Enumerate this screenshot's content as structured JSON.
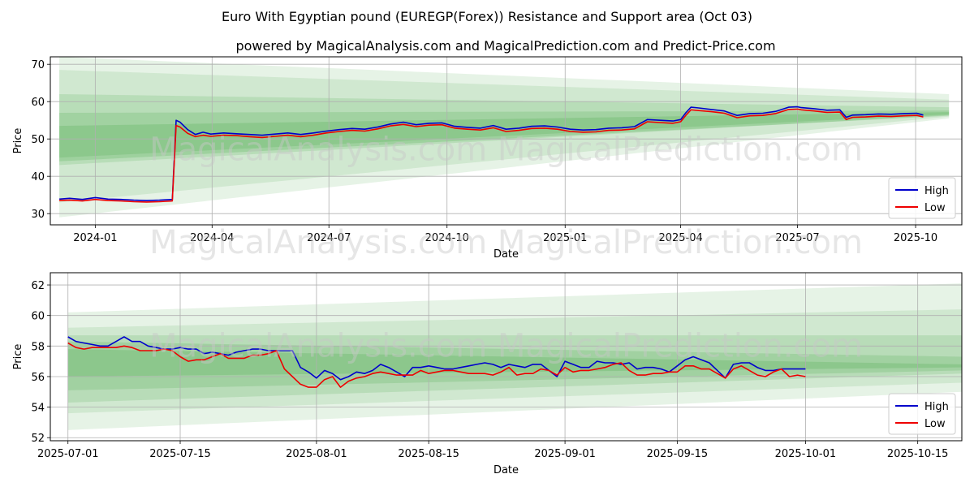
{
  "title": "Euro With Egyptian pound (EUREGP(Forex)) Resistance and Support area (Oct 03)",
  "subtitle": "powered by MagicalAnalysis.com and MagicalPrediction.com and Predict-Price.com",
  "watermark": "MagicalAnalysis.com   MagicalPrediction.com",
  "colors": {
    "high": "#0000cc",
    "low": "#ee0000",
    "band": "#2e9a2e"
  },
  "chart_data": [
    {
      "type": "line",
      "xlabel": "Date",
      "ylabel": "Price",
      "xlim": [
        -35,
        675
      ],
      "ylim": [
        27,
        72
      ],
      "xticks": [
        {
          "v": 0,
          "label": "2024-01"
        },
        {
          "v": 91,
          "label": "2024-04"
        },
        {
          "v": 182,
          "label": "2024-07"
        },
        {
          "v": 274,
          "label": "2024-10"
        },
        {
          "v": 366,
          "label": "2025-01"
        },
        {
          "v": 456,
          "label": "2025-04"
        },
        {
          "v": 547,
          "label": "2025-07"
        },
        {
          "v": 639,
          "label": "2025-10"
        }
      ],
      "yticks": [
        30,
        40,
        50,
        60,
        70
      ],
      "legend": {
        "position": "lower-right",
        "entries": [
          "High",
          "Low"
        ]
      },
      "series": [
        {
          "name": "High",
          "x": [
            -28,
            -20,
            -10,
            0,
            10,
            20,
            30,
            40,
            50,
            60,
            63,
            66,
            72,
            78,
            84,
            90,
            100,
            110,
            120,
            130,
            140,
            150,
            160,
            170,
            180,
            190,
            200,
            210,
            220,
            230,
            240,
            250,
            260,
            270,
            280,
            290,
            300,
            310,
            320,
            330,
            340,
            350,
            360,
            370,
            380,
            390,
            400,
            410,
            420,
            430,
            440,
            450,
            456,
            460,
            464,
            470,
            480,
            490,
            500,
            510,
            520,
            530,
            540,
            547,
            550,
            560,
            570,
            580,
            585,
            590,
            600,
            610,
            620,
            630,
            640,
            645
          ],
          "values": [
            33.9,
            34.1,
            33.8,
            34.3,
            33.9,
            33.8,
            33.6,
            33.5,
            33.6,
            33.8,
            55.0,
            54.5,
            52.5,
            51.2,
            51.8,
            51.3,
            51.6,
            51.4,
            51.2,
            51.0,
            51.3,
            51.6,
            51.2,
            51.6,
            52.1,
            52.5,
            52.8,
            52.6,
            53.2,
            54.0,
            54.5,
            53.8,
            54.2,
            54.3,
            53.4,
            53.1,
            52.9,
            53.6,
            52.6,
            52.9,
            53.4,
            53.5,
            53.2,
            52.6,
            52.4,
            52.5,
            52.9,
            53.0,
            53.3,
            55.2,
            55.0,
            54.8,
            55.2,
            57.0,
            58.5,
            58.3,
            57.9,
            57.5,
            56.3,
            56.8,
            56.9,
            57.4,
            58.5,
            58.6,
            58.4,
            58.1,
            57.7,
            57.8,
            55.8,
            56.4,
            56.5,
            56.7,
            56.6,
            56.8,
            56.9,
            56.4
          ]
        },
        {
          "name": "Low",
          "x": [
            -28,
            -20,
            -10,
            0,
            10,
            20,
            30,
            40,
            50,
            60,
            63,
            66,
            72,
            78,
            84,
            90,
            100,
            110,
            120,
            130,
            140,
            150,
            160,
            170,
            180,
            190,
            200,
            210,
            220,
            230,
            240,
            250,
            260,
            270,
            280,
            290,
            300,
            310,
            320,
            330,
            340,
            350,
            360,
            370,
            380,
            390,
            400,
            410,
            420,
            430,
            440,
            450,
            456,
            460,
            464,
            470,
            480,
            490,
            500,
            510,
            520,
            530,
            540,
            547,
            550,
            560,
            570,
            580,
            585,
            590,
            600,
            610,
            620,
            630,
            640,
            645
          ],
          "values": [
            33.5,
            33.6,
            33.4,
            33.8,
            33.5,
            33.4,
            33.2,
            33.1,
            33.2,
            33.4,
            53.6,
            53.2,
            51.5,
            50.6,
            51.0,
            50.7,
            51.0,
            50.9,
            50.6,
            50.4,
            50.7,
            51.0,
            50.6,
            51.0,
            51.6,
            52.0,
            52.3,
            52.1,
            52.7,
            53.5,
            53.9,
            53.3,
            53.7,
            53.8,
            52.9,
            52.6,
            52.4,
            53.0,
            52.0,
            52.3,
            52.8,
            52.9,
            52.6,
            52.0,
            51.8,
            51.9,
            52.3,
            52.4,
            52.7,
            54.6,
            54.4,
            54.2,
            54.6,
            56.3,
            57.8,
            57.6,
            57.3,
            56.9,
            55.7,
            56.2,
            56.3,
            56.8,
            57.9,
            58.0,
            57.8,
            57.5,
            57.1,
            57.2,
            55.2,
            55.8,
            55.9,
            56.1,
            56.0,
            56.2,
            56.3,
            55.9
          ]
        }
      ],
      "bands": [
        {
          "x0": -28,
          "x1": 665,
          "top0": 72.0,
          "bot0": 29.0,
          "top1": 62.0,
          "bot1": 55.5,
          "alpha": 0.12
        },
        {
          "x0": -28,
          "x1": 665,
          "top0": 68.5,
          "bot0": 33.0,
          "top1": 60.5,
          "bot1": 56.0,
          "alpha": 0.12
        },
        {
          "x0": -28,
          "x1": 665,
          "top0": 62.0,
          "bot0": 43.0,
          "top1": 58.5,
          "bot1": 56.4,
          "alpha": 0.14
        },
        {
          "x0": -28,
          "x1": 665,
          "top0": 57.0,
          "bot0": 45.0,
          "top1": 57.6,
          "bot1": 56.6,
          "alpha": 0.16
        },
        {
          "x0": -28,
          "x1": 665,
          "top0": 53.5,
          "bot0": 44.0,
          "top1": 57.2,
          "bot1": 56.2,
          "alpha": 0.18
        }
      ]
    },
    {
      "type": "line",
      "xlabel": "Date",
      "ylabel": "Price",
      "xlim": [
        -2.2,
        111.5
      ],
      "ylim": [
        51.8,
        62.8
      ],
      "xticks": [
        {
          "v": 0,
          "label": "2025-07-01"
        },
        {
          "v": 14,
          "label": "2025-07-15"
        },
        {
          "v": 31,
          "label": "2025-08-01"
        },
        {
          "v": 45,
          "label": "2025-08-15"
        },
        {
          "v": 62,
          "label": "2025-09-01"
        },
        {
          "v": 76,
          "label": "2025-09-15"
        },
        {
          "v": 92,
          "label": "2025-10-01"
        },
        {
          "v": 106,
          "label": "2025-10-15"
        }
      ],
      "yticks": [
        52,
        54,
        56,
        58,
        60,
        62
      ],
      "legend": {
        "position": "lower-right",
        "entries": [
          "High",
          "Low"
        ]
      },
      "series": [
        {
          "name": "High",
          "x": [
            0,
            1,
            2,
            3,
            4,
            5,
            6,
            7,
            8,
            9,
            10,
            11,
            12,
            13,
            14,
            15,
            16,
            17,
            18,
            19,
            20,
            21,
            22,
            23,
            24,
            25,
            26,
            27,
            28,
            29,
            30,
            31,
            32,
            33,
            34,
            35,
            36,
            37,
            38,
            39,
            40,
            41,
            42,
            43,
            44,
            45,
            46,
            47,
            48,
            49,
            50,
            51,
            52,
            53,
            54,
            55,
            56,
            57,
            58,
            59,
            60,
            61,
            62,
            63,
            64,
            65,
            66,
            67,
            68,
            69,
            70,
            71,
            72,
            73,
            74,
            75,
            76,
            77,
            78,
            79,
            80,
            81,
            82,
            83,
            84,
            85,
            86,
            87,
            88,
            89,
            90,
            91,
            92
          ],
          "values": [
            58.6,
            58.3,
            58.2,
            58.1,
            58.0,
            58.0,
            58.3,
            58.6,
            58.3,
            58.3,
            58.0,
            57.9,
            57.8,
            57.8,
            57.9,
            57.8,
            57.8,
            57.5,
            57.6,
            57.5,
            57.4,
            57.6,
            57.7,
            57.8,
            57.8,
            57.7,
            57.7,
            57.7,
            57.7,
            56.6,
            56.3,
            55.9,
            56.4,
            56.2,
            55.8,
            56.0,
            56.3,
            56.2,
            56.4,
            56.8,
            56.6,
            56.3,
            56.0,
            56.6,
            56.6,
            56.7,
            56.6,
            56.5,
            56.5,
            56.6,
            56.7,
            56.8,
            56.9,
            56.8,
            56.6,
            56.8,
            56.7,
            56.6,
            56.8,
            56.8,
            56.4,
            56.0,
            57.0,
            56.8,
            56.6,
            56.6,
            57.0,
            56.9,
            56.9,
            56.8,
            56.9,
            56.5,
            56.6,
            56.6,
            56.5,
            56.3,
            56.7,
            57.1,
            57.3,
            57.1,
            56.9,
            56.4,
            55.9,
            56.8,
            56.9,
            56.9,
            56.6,
            56.4,
            56.4,
            56.5,
            56.5,
            56.5,
            56.5
          ]
        },
        {
          "name": "Low",
          "x": [
            0,
            1,
            2,
            3,
            4,
            5,
            6,
            7,
            8,
            9,
            10,
            11,
            12,
            13,
            14,
            15,
            16,
            17,
            18,
            19,
            20,
            21,
            22,
            23,
            24,
            25,
            26,
            27,
            28,
            29,
            30,
            31,
            32,
            33,
            34,
            35,
            36,
            37,
            38,
            39,
            40,
            41,
            42,
            43,
            44,
            45,
            46,
            47,
            48,
            49,
            50,
            51,
            52,
            53,
            54,
            55,
            56,
            57,
            58,
            59,
            60,
            61,
            62,
            63,
            64,
            65,
            66,
            67,
            68,
            69,
            70,
            71,
            72,
            73,
            74,
            75,
            76,
            77,
            78,
            79,
            80,
            81,
            82,
            83,
            84,
            85,
            86,
            87,
            88,
            89,
            90,
            91,
            92
          ],
          "values": [
            58.2,
            57.9,
            57.8,
            57.9,
            57.9,
            57.9,
            57.9,
            58.0,
            57.9,
            57.7,
            57.7,
            57.7,
            57.8,
            57.7,
            57.3,
            57.0,
            57.1,
            57.1,
            57.3,
            57.5,
            57.2,
            57.2,
            57.2,
            57.4,
            57.4,
            57.5,
            57.7,
            56.5,
            56.0,
            55.5,
            55.3,
            55.3,
            55.8,
            56.0,
            55.3,
            55.7,
            55.9,
            56.0,
            56.2,
            56.3,
            56.2,
            56.1,
            56.1,
            56.1,
            56.4,
            56.2,
            56.3,
            56.4,
            56.4,
            56.3,
            56.2,
            56.2,
            56.2,
            56.1,
            56.3,
            56.6,
            56.1,
            56.2,
            56.2,
            56.5,
            56.4,
            56.1,
            56.6,
            56.3,
            56.4,
            56.4,
            56.5,
            56.6,
            56.8,
            56.9,
            56.4,
            56.1,
            56.1,
            56.2,
            56.2,
            56.3,
            56.3,
            56.7,
            56.7,
            56.5,
            56.5,
            56.2,
            55.9,
            56.5,
            56.7,
            56.4,
            56.1,
            56.0,
            56.3,
            56.5,
            56.0,
            56.1,
            56.0
          ]
        }
      ],
      "bands": [
        {
          "x0": 0,
          "x1": 111.5,
          "top0": 60.2,
          "bot0": 52.5,
          "top1": 62.1,
          "bot1": 55.0,
          "alpha": 0.12
        },
        {
          "x0": 0,
          "x1": 111.5,
          "top0": 59.2,
          "bot0": 53.6,
          "top1": 60.4,
          "bot1": 55.6,
          "alpha": 0.12
        },
        {
          "x0": 0,
          "x1": 111.5,
          "top0": 58.7,
          "bot0": 54.3,
          "top1": 58.7,
          "bot1": 56.2,
          "alpha": 0.15
        },
        {
          "x0": 0,
          "x1": 111.5,
          "top0": 58.3,
          "bot0": 55.1,
          "top1": 57.3,
          "bot1": 56.4,
          "alpha": 0.17
        },
        {
          "x0": 0,
          "x1": 111.5,
          "top0": 57.8,
          "bot0": 56.0,
          "top1": 56.8,
          "bot1": 56.6,
          "alpha": 0.18
        }
      ]
    }
  ]
}
